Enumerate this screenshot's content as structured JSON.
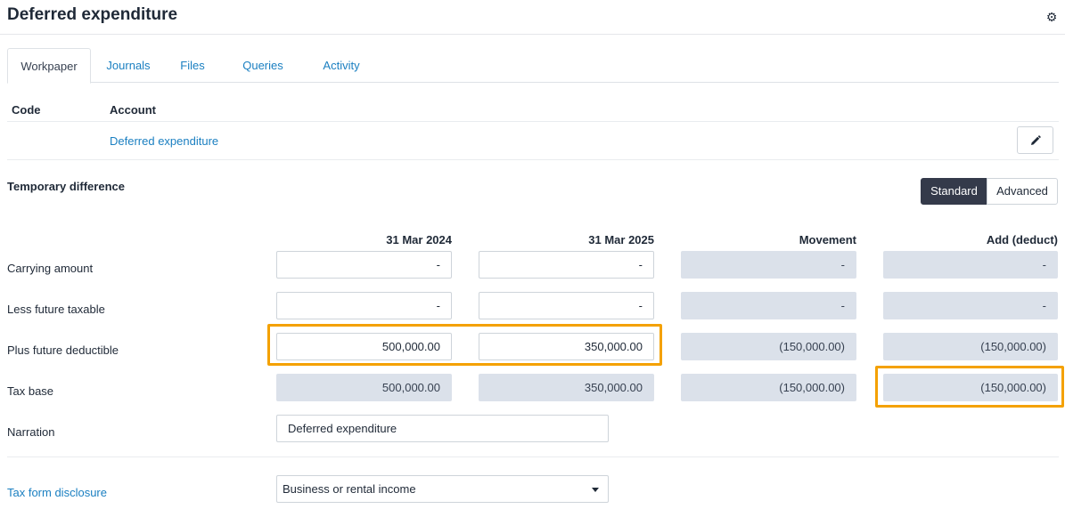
{
  "header": {
    "title": "Deferred expenditure",
    "settings_icon": "gear-icon"
  },
  "tabs": [
    {
      "label": "Workpaper",
      "active": true
    },
    {
      "label": "Journals"
    },
    {
      "label": "Files"
    },
    {
      "label": "Queries"
    },
    {
      "label": "Activity"
    }
  ],
  "account_table": {
    "headers": {
      "code": "Code",
      "account": "Account"
    },
    "row": {
      "code": "",
      "account": "Deferred expenditure"
    },
    "edit_icon": "pencil-icon"
  },
  "temporary_difference": {
    "title": "Temporary difference",
    "mode_toggle": {
      "standard": "Standard",
      "advanced": "Advanced",
      "selected": "Standard"
    },
    "columns": [
      "31 Mar 2024",
      "31 Mar 2025",
      "Movement",
      "Add (deduct)"
    ],
    "rows": [
      {
        "label": "Carrying amount",
        "values": [
          "-",
          "-",
          "-",
          "-"
        ]
      },
      {
        "label": "Less future taxable",
        "values": [
          "-",
          "-",
          "-",
          "-"
        ]
      },
      {
        "label": "Plus future deductible",
        "values": [
          "500,000.00",
          "350,000.00",
          "(150,000.00)",
          "(150,000.00)"
        ]
      },
      {
        "label": "Tax base",
        "values": [
          "500,000.00",
          "350,000.00",
          "(150,000.00)",
          "(150,000.00)"
        ]
      }
    ],
    "narration": {
      "label": "Narration",
      "value": "Deferred expenditure"
    }
  },
  "tax_form": {
    "label": "Tax form disclosure",
    "selected": "Business or rental income"
  },
  "colors": {
    "accent_link": "#1a7fc1",
    "highlight": "#f4a100",
    "readonly_fill": "#dbe1ea",
    "toggle_active": "#343a4a"
  }
}
